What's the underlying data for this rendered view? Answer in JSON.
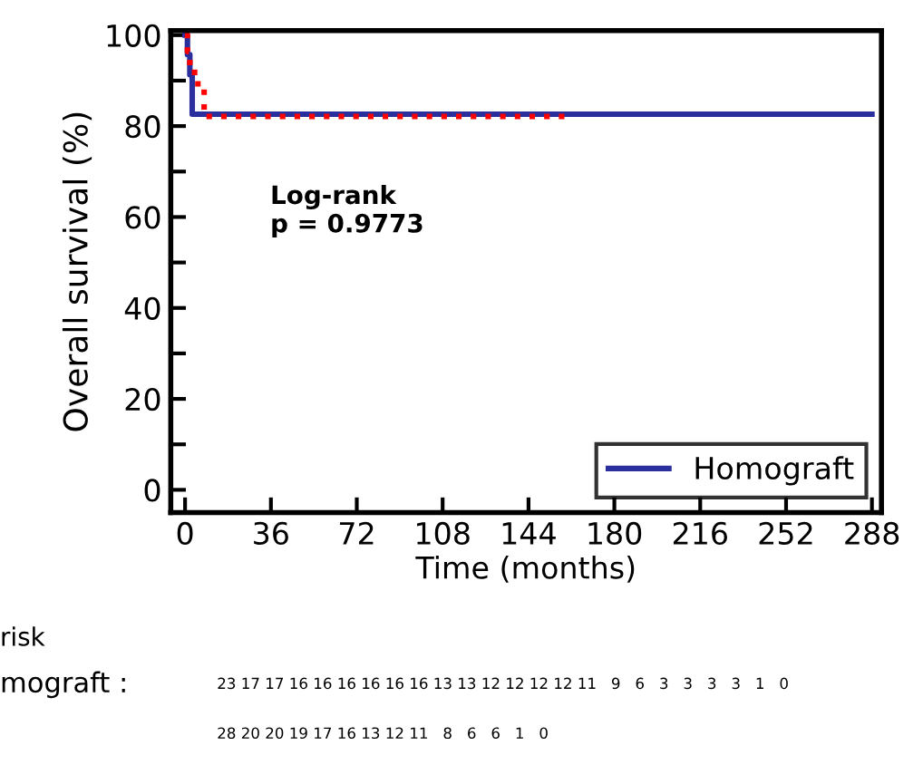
{
  "chart_data": {
    "type": "step",
    "xlabel": "Time (months)",
    "ylabel": "Overall survival (%)",
    "series": [
      {
        "name": "Homograft",
        "color": "#2b2f9e",
        "line_style": "solid",
        "x": [
          0,
          1,
          2,
          3,
          288
        ],
        "values": [
          100,
          95.7,
          91.3,
          82.6,
          82.6
        ]
      },
      {
        "color": "#ff0000",
        "line_style": "dotted",
        "x": [
          0,
          1,
          2,
          4,
          8,
          160
        ],
        "values": [
          100,
          96.4,
          92.9,
          89.3,
          82.1,
          82.1
        ]
      }
    ],
    "xlim": [
      -6,
      292
    ],
    "ylim": [
      -5,
      101
    ],
    "xticks": [
      0,
      36,
      72,
      108,
      144,
      180,
      216,
      252,
      288
    ],
    "yticks": [
      0,
      {
        "value": 10,
        "label": null
      },
      20,
      {
        "value": 30,
        "label": null
      },
      40,
      {
        "value": 50,
        "label": null
      },
      60,
      {
        "value": 70,
        "label": null
      },
      80,
      {
        "value": 90,
        "label": null
      },
      100
    ],
    "grid": false,
    "legend": "bottom right",
    "annotations": [
      "Log-rank\np = 0.9773",
      "risk",
      "mograft :",
      "23 17 17 16 16 16 16 16 16 13 13 12 12 12 12 11   9   6   3   3   3   3   1   0",
      "28 20 20 19 17 16 13 12 11   8   6   6   1   0"
    ]
  }
}
